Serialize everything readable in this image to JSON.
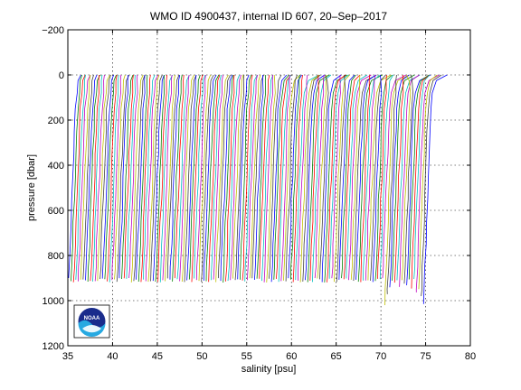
{
  "chart_data": {
    "type": "line",
    "title": "WMO ID 4900437, internal ID 607, 20–Sep–2017",
    "xlabel": "salinity [psu]",
    "ylabel": "pressure [dbar]",
    "xlim": [
      35,
      80
    ],
    "ylim": [
      -200,
      1200
    ],
    "y_reversed": true,
    "grid": true,
    "x_ticks": [
      35,
      40,
      45,
      50,
      55,
      60,
      65,
      70,
      75,
      80
    ],
    "x_tick_labels": [
      "35",
      "40",
      "45",
      "50",
      "55",
      "60",
      "65",
      "70",
      "75",
      "80"
    ],
    "y_ticks": [
      -200,
      0,
      200,
      400,
      600,
      800,
      1000,
      1200
    ],
    "y_tick_labels": [
      "−200",
      "0",
      "200",
      "400",
      "600",
      "800",
      "1000",
      "1200"
    ],
    "series_description_note": "",
    "profiles": {
      "count": 148,
      "first_surface_salinity": 36.0,
      "surface_salinity_step": 0.27,
      "deep_salinity_offset": -0.9,
      "max_pressure": 900,
      "colors": [
        "#0000ff",
        "#008000",
        "#ff0000",
        "#00bfbf",
        "#bf00bf",
        "#bfbf00",
        "#404040"
      ]
    },
    "logo": {
      "name": "noaa-logo",
      "text": "NOAA"
    }
  }
}
